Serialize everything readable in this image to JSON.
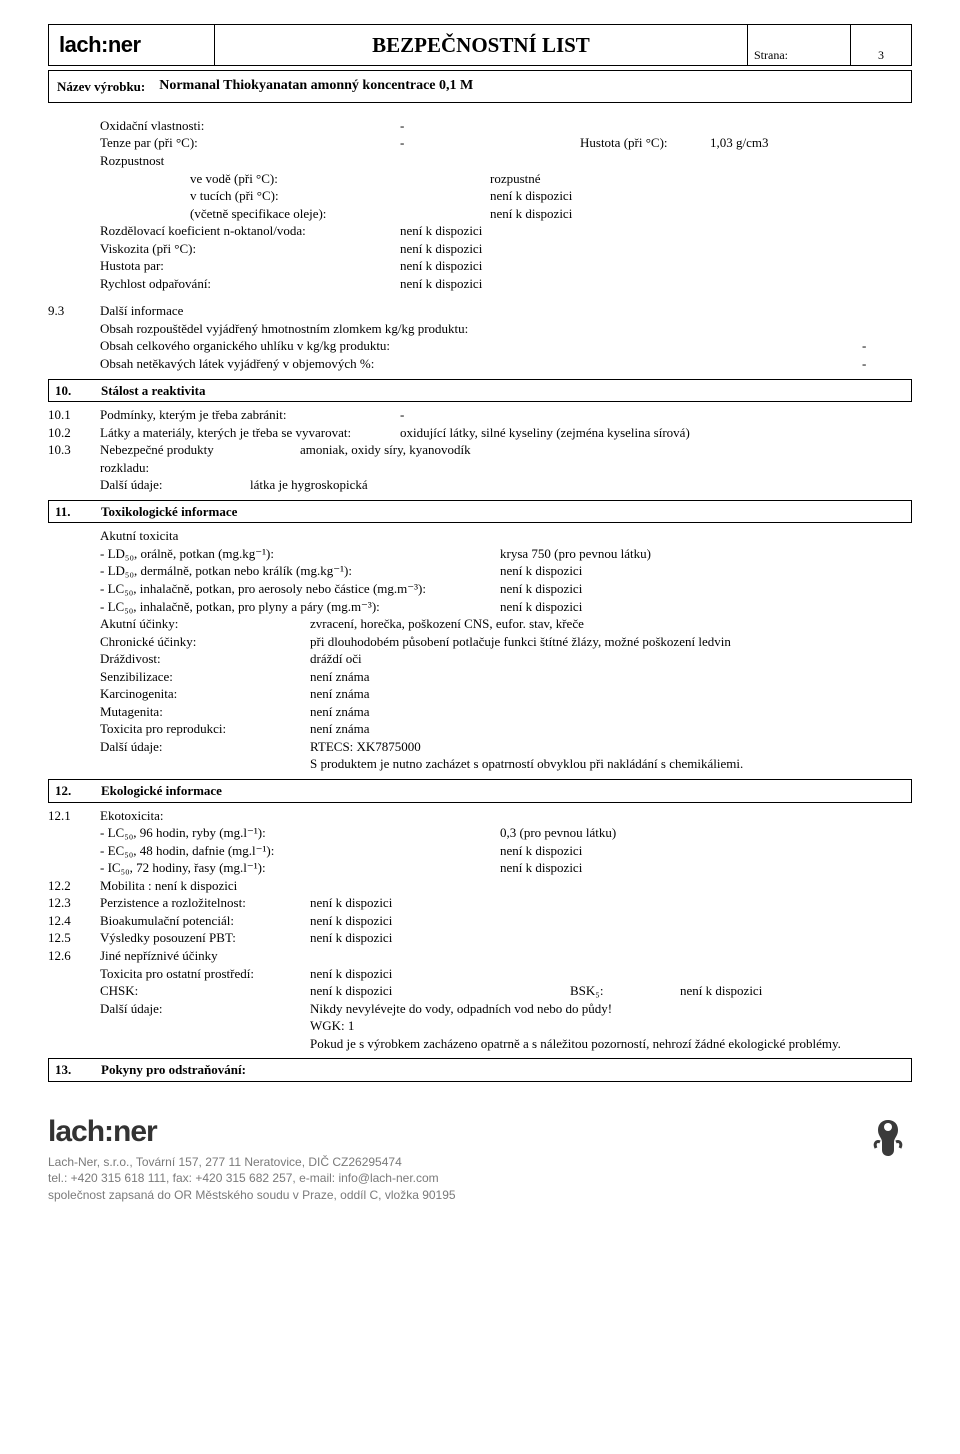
{
  "header": {
    "logo": "lach:ner",
    "title": "BEZPEČNOSTNÍ  LIST",
    "strana_label": "Strana:",
    "page_number": "3"
  },
  "product": {
    "label": "Název výrobku:",
    "value": "Normanal Thiokyanatan amonný koncentrace 0,1 M"
  },
  "section9": {
    "props": [
      {
        "label": "Oxidační vlastnosti:",
        "val": "-",
        "extra1": "",
        "extra2": ""
      },
      {
        "label": "Tenze par (při °C):",
        "val": "-",
        "extra1": "Hustota (při °C):",
        "extra2": "1,03 g/cm3"
      },
      {
        "label": "Rozpustnost",
        "val": "",
        "extra1": "",
        "extra2": ""
      },
      {
        "label": "ve vodě (při °C):",
        "val": "rozpustné",
        "extra1": "",
        "extra2": "",
        "nested": true
      },
      {
        "label": "v tucích (při °C):",
        "val": "není k dispozici",
        "extra1": "",
        "extra2": "",
        "nested": true
      },
      {
        "label": "(včetně specifikace oleje):",
        "val": "není k dispozici",
        "extra1": "",
        "extra2": "",
        "nested": true
      },
      {
        "label": "Rozdělovací koeficient n-oktanol/voda:",
        "val": "není k dispozici",
        "extra1": "",
        "extra2": ""
      },
      {
        "label": "Viskozita (při °C):",
        "val": "není k dispozici",
        "extra1": "",
        "extra2": ""
      },
      {
        "label": "Hustota par:",
        "val": "není k dispozici",
        "extra1": "",
        "extra2": ""
      },
      {
        "label": "Rychlost odpařování:",
        "val": "není k dispozici",
        "extra1": "",
        "extra2": ""
      }
    ],
    "n93": "9.3",
    "n93_label": "Další informace",
    "obsah1": "Obsah rozpouštědel vyjádřený hmotnostním zlomkem kg/kg produktu:",
    "obsah1_val": "-",
    "obsah2": "Obsah celkového organického uhlíku v kg/kg produktu:",
    "obsah2_val": "-",
    "obsah3": "Obsah netěkavých látek vyjádřený v objemových %:",
    "obsah3_val": "-"
  },
  "section10": {
    "num": "10.",
    "title": "Stálost a reaktivita",
    "r1_n": "10.1",
    "r1": "Podmínky, kterým je třeba zabránit:",
    "r1_val": "-",
    "r2_n": "10.2",
    "r2": "Látky a materiály, kterých je třeba se vyvarovat:",
    "r2_val": "oxidující látky, silné kyseliny (zejména kyselina sírová)",
    "r3_n": "10.3",
    "r3a": "Nebezpečné produkty",
    "r3b": "rozkladu:",
    "r3_val": "amoniak, oxidy síry, kyanovodík",
    "r4": "Další údaje:",
    "r4_val": "látka je hygroskopická"
  },
  "section11": {
    "num": "11.",
    "title": "Toxikologické informace",
    "akutni": "Akutní toxicita",
    "lines": [
      {
        "k": "- LD₅₀, orálně, potkan (mg.kg⁻¹):",
        "v": "krysa 750 (pro pevnou látku)"
      },
      {
        "k": "- LD₅₀, dermálně, potkan nebo králík (mg.kg⁻¹):",
        "v": "není k dispozici"
      },
      {
        "k": "- LC₅₀, inhalačně, potkan, pro aerosoly nebo částice (mg.m⁻³):",
        "v": "není k dispozici"
      },
      {
        "k": "- LC₅₀, inhalačně, potkan, pro plyny a páry (mg.m⁻³):",
        "v": "není k dispozici"
      }
    ],
    "kv": [
      {
        "k": "Akutní účinky:",
        "v": "zvracení, horečka, poškození CNS, eufor. stav, křeče"
      },
      {
        "k": "Chronické účinky:",
        "v": "při dlouhodobém působení potlačuje funkci štítné žlázy, možné poškození ledvin"
      },
      {
        "k": "Dráždivost:",
        "v": "dráždí oči"
      },
      {
        "k": "Senzibilizace:",
        "v": "není známa"
      },
      {
        "k": "Karcinogenita:",
        "v": "není známa"
      },
      {
        "k": "Mutagenita:",
        "v": "není známa"
      },
      {
        "k": "Toxicita pro reprodukci:",
        "v": "není známa"
      },
      {
        "k": "Další údaje:",
        "v": "RTECS: XK7875000"
      }
    ],
    "tail": "S produktem je nutno zacházet s opatrností obvyklou při nakládání s chemikáliemi."
  },
  "section12": {
    "num": "12.",
    "title": "Ekologické informace",
    "r1_n": "12.1",
    "r1": "Ekotoxicita:",
    "ecolines": [
      {
        "k": "- LC₅₀, 96 hodin, ryby (mg.l⁻¹):",
        "v": "0,3 (pro pevnou látku)"
      },
      {
        "k": "- EC₅₀, 48 hodin, dafnie (mg.l⁻¹):",
        "v": "není k dispozici"
      },
      {
        "k": "- IC₅₀, 72 hodiny, řasy (mg.l⁻¹):",
        "v": "není k dispozici"
      }
    ],
    "r2_n": "12.2",
    "r2": "Mobilita : není k dispozici",
    "r3_n": "12.3",
    "r3": "Perzistence a rozložitelnost:",
    "r3_val": "není k dispozici",
    "r4_n": "12.4",
    "r4": "Bioakumulační potenciál:",
    "r4_val": "není k dispozici",
    "r5_n": "12.5",
    "r5": "Výsledky  posouzení PBT:",
    "r5_val": "není k dispozici",
    "r6_n": "12.6",
    "r6": "Jiné nepříznivé účinky",
    "r6a": "Toxicita pro ostatní prostředí:",
    "r6a_val": "není k dispozici",
    "chsk": "CHSK:",
    "chsk_val": "není k dispozici",
    "bsk": "BSK₅:",
    "bsk_val": "není k dispozici",
    "dalsi": "Další údaje:",
    "dalsi_val": "Nikdy nevylévejte do vody, odpadních vod nebo do půdy!",
    "wgk": "WGK: 1",
    "tail": "Pokud je s výrobkem zacházeno opatrně a s náležitou pozorností, nehrozí žádné ekologické problémy."
  },
  "section13": {
    "num": "13.",
    "title": "Pokyny pro odstraňování:"
  },
  "footer": {
    "logo": "lach:ner",
    "line1": "Lach-Ner, s.r.o., Tovární 157, 277 11 Neratovice, DIČ CZ26295474",
    "line2": "tel.: +420 315 618 111, fax: +420 315 682 257, e-mail: info@lach-ner.com",
    "line3": "společnost zapsaná do OR Městského soudu v Praze, oddíl C, vložka 90195"
  }
}
